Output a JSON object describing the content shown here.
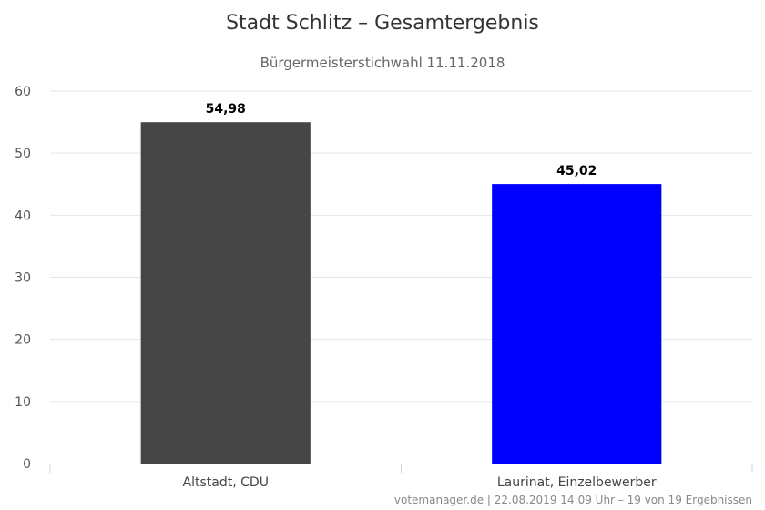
{
  "chart_data": {
    "type": "bar",
    "title": "Stadt Schlitz – Gesamtergebnis",
    "subtitle": "Bürgermeisterstichwahl 11.11.2018",
    "xlabel": "",
    "ylabel": "",
    "categories": [
      "Altstadt, CDU",
      "Laurinat, Einzelbewerber"
    ],
    "values": [
      54.98,
      45.02
    ],
    "data_labels": [
      "54,98",
      "45,02"
    ],
    "bar_colors": [
      "#464646",
      "#0000ff"
    ],
    "ylim": [
      0,
      60
    ],
    "yticks": [
      0,
      10,
      20,
      30,
      40,
      50,
      60
    ],
    "grid": true,
    "legend": "none"
  },
  "credits": "votemanager.de | 22.08.2019 14:09 Uhr – 19 von 19 Ergebnissen"
}
